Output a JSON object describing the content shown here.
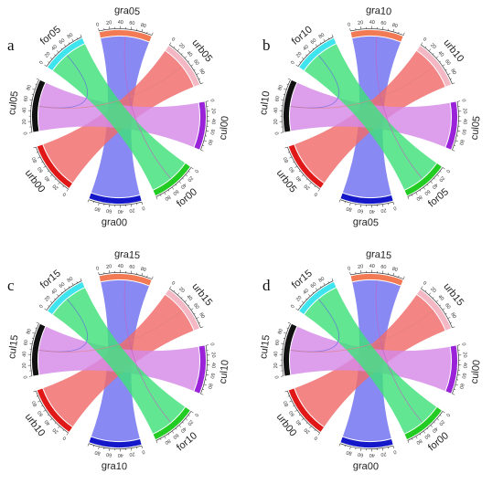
{
  "colors": {
    "gra": "#6f6ff0",
    "urb": "#f06a6a",
    "cul": "#d68ae8",
    "for": "#3fe07a",
    "ring_gra_top": "#f27a55",
    "ring_urb_top": "#f4b8c4",
    "ring_cul_left": "#111111",
    "ring_for_top": "#3ee4ee",
    "ring_cul_right": "#9a22d8",
    "ring_for_bottom": "#22cc22",
    "ring_gra_bottom": "#1418c8",
    "ring_urb_bottom": "#e01818"
  },
  "tick_labels": [
    "0",
    "20",
    "40",
    "60",
    "80"
  ],
  "panels": [
    {
      "letter": "a",
      "labels": {
        "top_gra": "gra05",
        "top_urb": "urb05",
        "top_for": "for05",
        "left_cul": "cul05",
        "right_cul": "cul00",
        "bottom_for": "for00",
        "bottom_gra": "gra00",
        "bottom_urb": "urb00"
      }
    },
    {
      "letter": "b",
      "labels": {
        "top_gra": "gra10",
        "top_urb": "urb10",
        "top_for": "for10",
        "left_cul": "cul10",
        "right_cul": "cul05",
        "bottom_for": "for05",
        "bottom_gra": "gra05",
        "bottom_urb": "urb05"
      }
    },
    {
      "letter": "c",
      "labels": {
        "top_gra": "gra15",
        "top_urb": "urb15",
        "top_for": "for15",
        "left_cul": "cul15",
        "right_cul": "cul10",
        "bottom_for": "for10",
        "bottom_gra": "gra10",
        "bottom_urb": "urb10"
      }
    },
    {
      "letter": "d",
      "labels": {
        "top_gra": "gra15",
        "top_urb": "urb15",
        "top_for": "for15",
        "left_cul": "cul15",
        "right_cul": "cul00",
        "bottom_for": "for00",
        "bottom_gra": "gra00",
        "bottom_urb": "urb00"
      }
    }
  ]
}
